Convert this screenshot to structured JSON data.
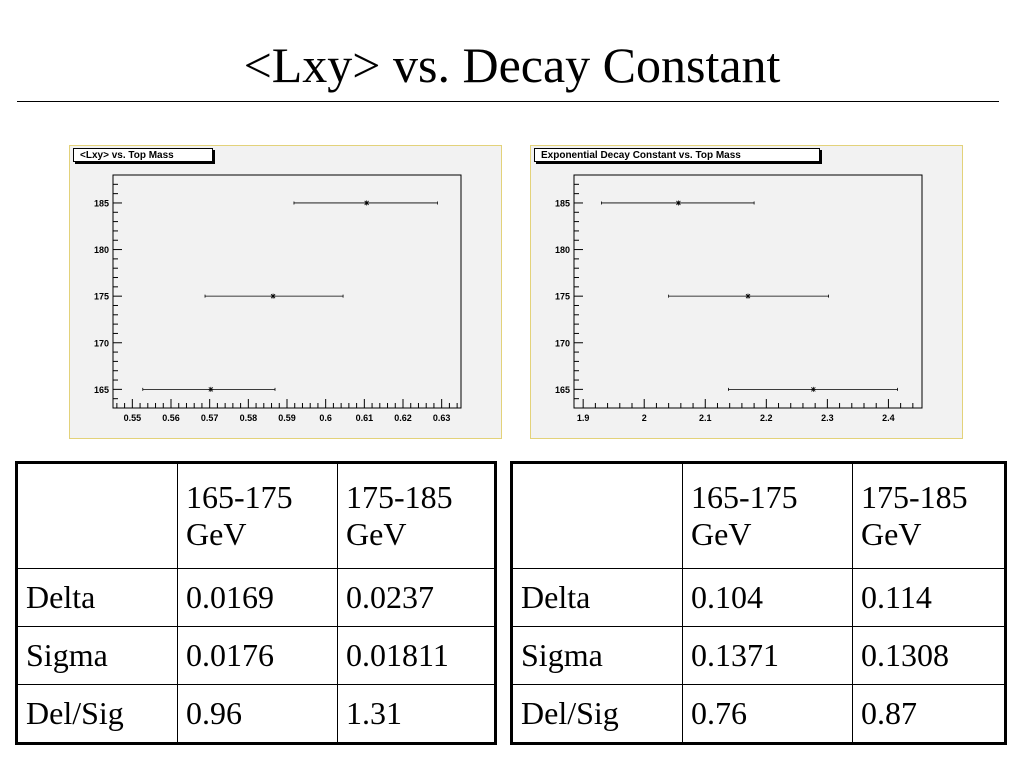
{
  "slide": {
    "title": "<Lxy> vs. Decay Constant"
  },
  "chart_data": [
    {
      "type": "scatter",
      "title": "<Lxy> vs. Top Mass",
      "xlim": [
        0.545,
        0.635
      ],
      "ylim": [
        163,
        188
      ],
      "xticks": [
        0.55,
        0.56,
        0.57,
        0.58,
        0.59,
        0.6,
        0.61,
        0.62,
        0.63
      ],
      "xtick_labels": [
        "0.55",
        "0.56",
        "0.57",
        "0.58",
        "0.59",
        "0.6",
        "0.61",
        "0.62",
        "0.63"
      ],
      "yticks": [
        165,
        170,
        175,
        180,
        185
      ],
      "ytick_labels": [
        "165",
        "170",
        "175",
        "180",
        "185"
      ],
      "points": [
        {
          "x": 0.5703,
          "y": 165,
          "xerr_low": 0.5527,
          "xerr_high": 0.5869
        },
        {
          "x": 0.5864,
          "y": 175,
          "xerr_low": 0.5688,
          "xerr_high": 0.6045
        },
        {
          "x": 0.6106,
          "y": 185,
          "xerr_low": 0.5918,
          "xerr_high": 0.6289
        }
      ],
      "grid": false
    },
    {
      "type": "scatter",
      "title": "Exponential Decay Constant vs. Top Mass",
      "xlim": [
        1.885,
        2.455
      ],
      "ylim": [
        163,
        188
      ],
      "xticks": [
        1.9,
        2.0,
        2.1,
        2.2,
        2.3,
        2.4
      ],
      "xtick_labels": [
        "1.9",
        "2",
        "2.1",
        "2.2",
        "2.3",
        "2.4"
      ],
      "yticks": [
        165,
        170,
        175,
        180,
        185
      ],
      "ytick_labels": [
        "165",
        "170",
        "175",
        "180",
        "185"
      ],
      "points": [
        {
          "x": 2.277,
          "y": 165,
          "xerr_low": 2.138,
          "xerr_high": 2.415
        },
        {
          "x": 2.17,
          "y": 175,
          "xerr_low": 2.04,
          "xerr_high": 2.302
        },
        {
          "x": 2.056,
          "y": 185,
          "xerr_low": 1.93,
          "xerr_high": 2.18
        }
      ],
      "grid": false
    }
  ],
  "tables": [
    {
      "header": [
        "",
        "165-175 GeV",
        "175-185 GeV"
      ],
      "rows": [
        [
          "Delta",
          "0.0169",
          "0.0237"
        ],
        [
          "Sigma",
          "0.0176",
          "0.01811"
        ],
        [
          "Del/Sig",
          "0.96",
          "1.31"
        ]
      ]
    },
    {
      "header": [
        "",
        "165-175 GeV",
        "175-185 GeV"
      ],
      "rows": [
        [
          "Delta",
          "0.104",
          "0.114"
        ],
        [
          "Sigma",
          "0.1371",
          "0.1308"
        ],
        [
          "Del/Sig",
          "0.76",
          "0.87"
        ]
      ]
    }
  ],
  "colors": {
    "frame_border": "#e3d27a",
    "pad_background": "#f2f2f2"
  }
}
